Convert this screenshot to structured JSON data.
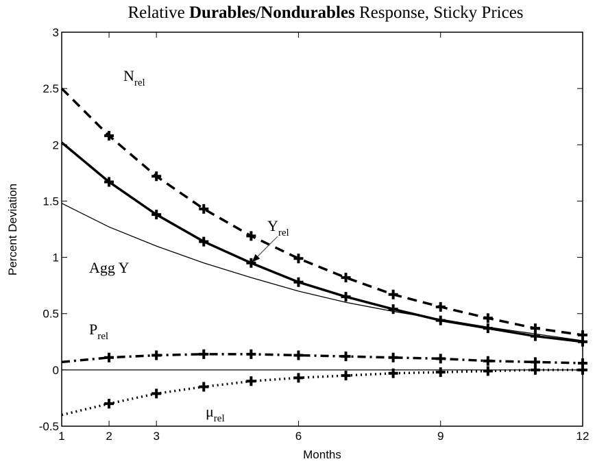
{
  "chart_data": {
    "type": "line",
    "title": [
      "Relative",
      "Durables/Nondurables",
      "Response, Sticky Prices"
    ],
    "xlabel": "Months",
    "ylabel": "Percent Deviation",
    "x": [
      1,
      2,
      3,
      4,
      5,
      6,
      7,
      8,
      9,
      10,
      11,
      12
    ],
    "xlim": [
      1,
      12
    ],
    "xticks": [
      1,
      2,
      3,
      6,
      9,
      12
    ],
    "ylim": [
      -0.5,
      3
    ],
    "yticks": [
      -0.5,
      0,
      0.5,
      1,
      1.5,
      2,
      2.5,
      3
    ],
    "zero_line": true,
    "series": [
      {
        "name": "N",
        "sub": "rel",
        "color": "#000",
        "style": "dashed",
        "weight": "bold",
        "marker": "+",
        "values": [
          2.5,
          2.08,
          1.72,
          1.43,
          1.19,
          0.99,
          0.82,
          0.67,
          0.56,
          0.46,
          0.37,
          0.31
        ]
      },
      {
        "name": "Y",
        "sub": "rel",
        "color": "#000",
        "style": "solid",
        "weight": "bold",
        "marker": "+",
        "values": [
          2.02,
          1.67,
          1.38,
          1.14,
          0.95,
          0.78,
          0.65,
          0.54,
          0.44,
          0.37,
          0.3,
          0.25
        ]
      },
      {
        "name": "Agg Y",
        "color": "#000",
        "style": "solid",
        "weight": "normal",
        "values": [
          1.48,
          1.27,
          1.1,
          0.95,
          0.82,
          0.7,
          0.6,
          0.52,
          0.45,
          0.38,
          0.32,
          0.26
        ]
      },
      {
        "name": "P",
        "sub": "rel",
        "color": "#000",
        "style": "dashdot",
        "weight": "bold",
        "marker": "+",
        "values": [
          0.07,
          0.11,
          0.13,
          0.14,
          0.14,
          0.13,
          0.12,
          0.11,
          0.1,
          0.08,
          0.07,
          0.06
        ]
      },
      {
        "name": "μ",
        "sub": "rel",
        "color": "#000",
        "style": "dotted",
        "weight": "bold",
        "marker": "+",
        "values": [
          -0.4,
          -0.3,
          -0.21,
          -0.15,
          -0.1,
          -0.07,
          -0.05,
          -0.03,
          -0.02,
          -0.01,
          0.0,
          0.0
        ]
      }
    ]
  }
}
